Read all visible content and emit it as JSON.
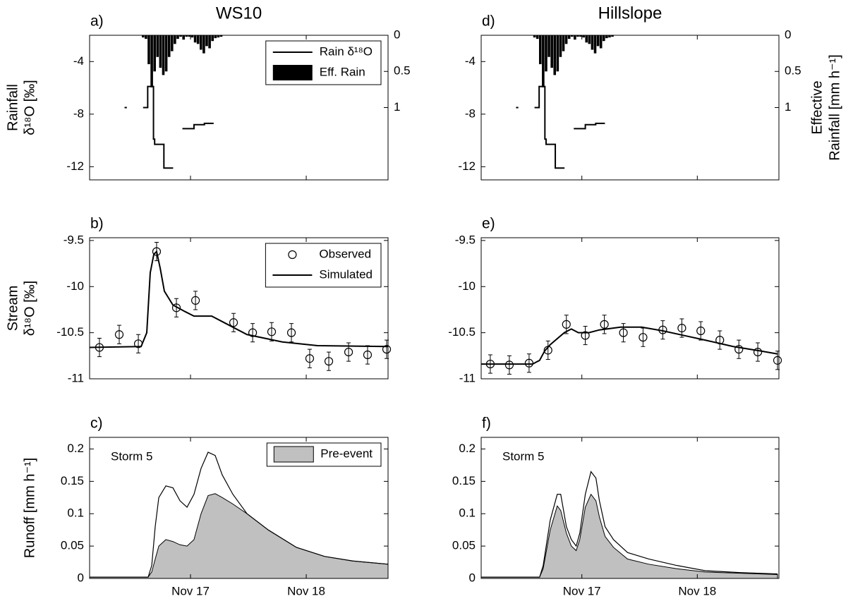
{
  "chart_data": [
    {
      "type": "combo",
      "title": "WS10",
      "panel": "a)",
      "ylabel": [
        "Rainfall",
        "δ¹⁸O [‰]"
      ],
      "xlim": [
        16.128,
        18.707
      ],
      "xticks": [
        17,
        18
      ],
      "xtick_labels": false,
      "ylim": [
        -13,
        -2
      ],
      "yticks": [
        -12,
        -8,
        -4
      ],
      "y2lim": [
        0,
        2
      ],
      "y2ticks": [
        0,
        0.5,
        1
      ],
      "y2_inverted": true,
      "legend": true,
      "legend_corner": "upper right",
      "series": [
        {
          "name": "Rain δ¹⁸O",
          "color": "#000000",
          "x": [
            16.43,
            16.45,
            null,
            16.59,
            16.63,
            16.63,
            16.68,
            16.68,
            16.69,
            16.69,
            16.77,
            16.77,
            16.85,
            null,
            16.93,
            17.03,
            17.03,
            17.12,
            17.12,
            17.2
          ],
          "values": [
            -7.5,
            -7.5,
            null,
            -7.5,
            -7.5,
            -5.9,
            -5.9,
            -9.9,
            -9.9,
            -10.3,
            -10.3,
            -12.1,
            -12.1,
            null,
            -9.1,
            -9.1,
            -8.8,
            -8.8,
            -8.7,
            -8.7
          ]
        },
        {
          "name": "Eff. Rain",
          "color": "#000000",
          "axis": "y2",
          "x": [
            16.59,
            16.615,
            16.64,
            16.665,
            16.69,
            16.715,
            16.74,
            16.765,
            16.79,
            16.815,
            16.84,
            16.865,
            16.89,
            16.915,
            16.94,
            16.965,
            16.99,
            17.015,
            17.04,
            17.065,
            17.09,
            17.115,
            17.14,
            17.165,
            17.19,
            17.215,
            17.24,
            17.265
          ],
          "values": [
            0.03,
            0.05,
            0.4,
            0.72,
            0.5,
            0.3,
            0.45,
            0.55,
            0.5,
            0.3,
            0.22,
            0.12,
            0.05,
            0.02,
            0.06,
            0.02,
            0.02,
            0.03,
            0.1,
            0.12,
            0.2,
            0.25,
            0.15,
            0.18,
            0.08,
            0.04,
            0.03,
            0.02
          ]
        }
      ]
    },
    {
      "type": "errorbar",
      "panel": "b)",
      "ylabel": [
        "Stream",
        "δ¹⁸O [‰]"
      ],
      "xlim": [
        16.128,
        18.707
      ],
      "xticks": [
        17,
        18
      ],
      "xtick_labels": false,
      "ylim": [
        -11,
        -9.47
      ],
      "yticks": [
        -11,
        -10.5,
        -10,
        -9.5
      ],
      "legend": true,
      "legend_corner": "upper right",
      "series": [
        {
          "name": "Observed",
          "color": "#000000",
          "x": [
            16.213,
            16.384,
            16.549,
            16.707,
            16.878,
            17.043,
            17.372,
            17.537,
            17.701,
            17.872,
            18.03,
            18.195,
            18.366,
            18.53,
            18.695
          ],
          "values": [
            -10.66,
            -10.52,
            -10.62,
            -9.62,
            -10.23,
            -10.15,
            -10.39,
            -10.5,
            -10.49,
            -10.5,
            -10.78,
            -10.81,
            -10.71,
            -10.74,
            -10.68
          ],
          "errors": [
            0.1,
            0.1,
            0.1,
            0.1,
            0.1,
            0.1,
            0.1,
            0.1,
            0.1,
            0.1,
            0.1,
            0.1,
            0.1,
            0.1,
            0.1
          ]
        },
        {
          "name": "Simulated",
          "color": "#000000",
          "x": [
            16.128,
            16.573,
            16.622,
            16.652,
            16.683,
            16.707,
            16.738,
            16.774,
            16.848,
            16.951,
            17.03,
            17.183,
            17.305,
            17.488,
            17.793,
            18.098,
            18.707
          ],
          "values": [
            -10.66,
            -10.65,
            -10.5,
            -9.85,
            -9.65,
            -9.62,
            -9.8,
            -10.05,
            -10.2,
            -10.27,
            -10.32,
            -10.32,
            -10.4,
            -10.52,
            -10.6,
            -10.64,
            -10.65
          ]
        }
      ]
    },
    {
      "type": "area",
      "panel": "c)",
      "ylabel": "Runoff [mm h⁻¹]",
      "annotation": "Storm 5",
      "xlim": [
        16.128,
        18.707
      ],
      "xticks": [
        {
          "value": 17,
          "label": "Nov 17"
        },
        {
          "value": 18,
          "label": "Nov 18"
        }
      ],
      "ylim": [
        0,
        0.218
      ],
      "yticks": [
        0,
        0.05,
        0.1,
        0.15,
        0.2
      ],
      "legend": true,
      "legend_corner": "upper right",
      "series": [
        {
          "name": "Pre-event",
          "color": "#c0c0c0",
          "fill": true,
          "x": [
            16.128,
            16.634,
            16.665,
            16.695,
            16.726,
            16.787,
            16.848,
            16.909,
            16.97,
            17.03,
            17.091,
            17.152,
            17.213,
            17.274,
            17.366,
            17.488,
            17.671,
            17.915,
            18.159,
            18.402,
            18.707
          ],
          "values": [
            0.002,
            0.002,
            0.01,
            0.03,
            0.05,
            0.06,
            0.057,
            0.052,
            0.05,
            0.06,
            0.1,
            0.128,
            0.131,
            0.125,
            0.115,
            0.1,
            0.075,
            0.048,
            0.034,
            0.027,
            0.022
          ]
        },
        {
          "color": "#000000",
          "x": [
            16.128,
            16.634,
            16.665,
            16.695,
            16.726,
            16.787,
            16.848,
            16.909,
            16.97,
            17.03,
            17.091,
            17.152,
            17.213,
            17.274,
            17.366,
            17.488,
            17.671,
            17.915,
            18.159,
            18.402,
            18.707
          ],
          "values": [
            0.002,
            0.002,
            0.02,
            0.08,
            0.125,
            0.143,
            0.14,
            0.12,
            0.11,
            0.13,
            0.17,
            0.195,
            0.19,
            0.16,
            0.13,
            0.1,
            0.075,
            0.048,
            0.034,
            0.027,
            0.022
          ]
        }
      ]
    },
    {
      "type": "combo",
      "title": "Hillslope",
      "panel": "d)",
      "y2label": [
        "Effective",
        "Rainfall [mm h⁻¹]"
      ],
      "xlim": [
        16.128,
        18.707
      ],
      "xticks": [
        17,
        18
      ],
      "xtick_labels": false,
      "ylim": [
        -13,
        -2
      ],
      "yticks": [
        -12,
        -8,
        -4
      ],
      "y2lim": [
        0,
        2
      ],
      "y2ticks": [
        0,
        0.5,
        1
      ],
      "y2_inverted": true,
      "legend": false,
      "series": [
        {
          "color": "#000000",
          "x": [
            16.43,
            16.45,
            null,
            16.59,
            16.63,
            16.63,
            16.68,
            16.68,
            16.69,
            16.69,
            16.77,
            16.77,
            16.85,
            null,
            16.93,
            17.03,
            17.03,
            17.12,
            17.12,
            17.2
          ],
          "values": [
            -7.5,
            -7.5,
            null,
            -7.5,
            -7.5,
            -5.9,
            -5.9,
            -9.9,
            -9.9,
            -10.3,
            -10.3,
            -12.1,
            -12.1,
            null,
            -9.1,
            -9.1,
            -8.8,
            -8.8,
            -8.7,
            -8.7
          ]
        },
        {
          "color": "#000000",
          "axis": "y2",
          "x": [
            16.59,
            16.615,
            16.64,
            16.665,
            16.69,
            16.715,
            16.74,
            16.765,
            16.79,
            16.815,
            16.84,
            16.865,
            16.89,
            16.915,
            16.94,
            16.965,
            16.99,
            17.015,
            17.04,
            17.065,
            17.09,
            17.115,
            17.14,
            17.165,
            17.19,
            17.215,
            17.24,
            17.265
          ],
          "values": [
            0.03,
            0.05,
            0.4,
            0.72,
            0.5,
            0.3,
            0.45,
            0.55,
            0.5,
            0.3,
            0.22,
            0.12,
            0.05,
            0.02,
            0.06,
            0.02,
            0.02,
            0.03,
            0.1,
            0.12,
            0.2,
            0.25,
            0.15,
            0.18,
            0.08,
            0.04,
            0.03,
            0.02
          ]
        }
      ]
    },
    {
      "type": "errorbar",
      "panel": "e)",
      "xlim": [
        16.128,
        18.707
      ],
      "xticks": [
        17,
        18
      ],
      "xtick_labels": false,
      "ylim": [
        -11,
        -9.47
      ],
      "yticks": [
        -11,
        -10.5,
        -10,
        -9.5
      ],
      "legend": false,
      "series": [
        {
          "color": "#000000",
          "x": [
            16.207,
            16.372,
            16.543,
            16.707,
            16.866,
            17.03,
            17.195,
            17.36,
            17.53,
            17.701,
            17.866,
            18.03,
            18.195,
            18.36,
            18.524,
            18.695
          ],
          "values": [
            -10.84,
            -10.85,
            -10.83,
            -10.69,
            -10.41,
            -10.53,
            -10.41,
            -10.5,
            -10.55,
            -10.47,
            -10.45,
            -10.48,
            -10.58,
            -10.68,
            -10.71,
            -10.8
          ],
          "errors": [
            0.1,
            0.1,
            0.1,
            0.1,
            0.1,
            0.1,
            0.1,
            0.1,
            0.1,
            0.1,
            0.1,
            0.1,
            0.1,
            0.1,
            0.1,
            0.1
          ]
        },
        {
          "color": "#000000",
          "x": [
            16.128,
            16.573,
            16.634,
            16.677,
            16.726,
            16.848,
            16.909,
            16.97,
            17.061,
            17.152,
            17.335,
            17.518,
            17.701,
            17.884,
            18.067,
            18.311,
            18.555,
            18.695
          ],
          "values": [
            -10.84,
            -10.84,
            -10.8,
            -10.7,
            -10.63,
            -10.5,
            -10.46,
            -10.5,
            -10.5,
            -10.47,
            -10.44,
            -10.44,
            -10.48,
            -10.53,
            -10.58,
            -10.65,
            -10.7,
            -10.73
          ]
        }
      ]
    },
    {
      "type": "area",
      "panel": "f)",
      "annotation": "Storm 5",
      "xlim": [
        16.128,
        18.707
      ],
      "xticks": [
        {
          "value": 17,
          "label": "Nov 17"
        },
        {
          "value": 18,
          "label": "Nov 18"
        }
      ],
      "ylim": [
        0,
        0.218
      ],
      "yticks": [
        0,
        0.05,
        0.1,
        0.15,
        0.2
      ],
      "legend": false,
      "series": [
        {
          "color": "#c0c0c0",
          "fill": true,
          "x": [
            16.128,
            16.634,
            16.665,
            16.726,
            16.787,
            16.817,
            16.866,
            16.909,
            16.951,
            16.982,
            17.03,
            17.079,
            17.122,
            17.152,
            17.201,
            17.274,
            17.396,
            17.579,
            17.823,
            18.067,
            18.372,
            18.695
          ],
          "values": [
            0.002,
            0.002,
            0.015,
            0.075,
            0.112,
            0.105,
            0.07,
            0.05,
            0.043,
            0.06,
            0.11,
            0.13,
            0.12,
            0.095,
            0.065,
            0.048,
            0.03,
            0.022,
            0.015,
            0.01,
            0.008,
            0.006
          ]
        },
        {
          "color": "#000000",
          "x": [
            16.128,
            16.634,
            16.665,
            16.726,
            16.787,
            16.817,
            16.866,
            16.909,
            16.951,
            16.982,
            17.03,
            17.079,
            17.122,
            17.152,
            17.201,
            17.274,
            17.396,
            17.579,
            17.823,
            18.067,
            18.372,
            18.695
          ],
          "values": [
            0.002,
            0.002,
            0.02,
            0.09,
            0.13,
            0.13,
            0.08,
            0.06,
            0.05,
            0.07,
            0.13,
            0.165,
            0.155,
            0.12,
            0.08,
            0.06,
            0.04,
            0.03,
            0.02,
            0.012,
            0.009,
            0.007
          ]
        }
      ]
    }
  ]
}
